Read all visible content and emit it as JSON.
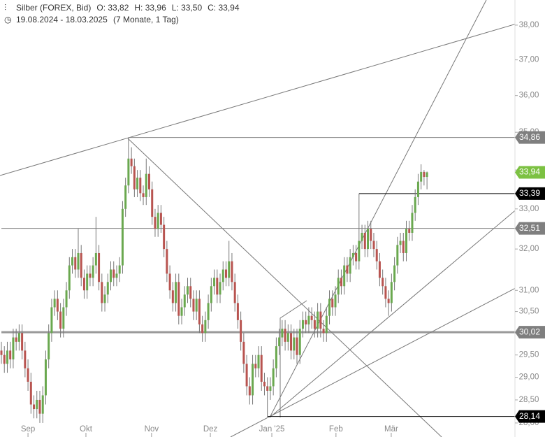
{
  "chart_data": {
    "type": "candlestick",
    "title": "Silber (FOREX, Bid)",
    "header_values": [
      "O: 33,82",
      "H: 33,96",
      "L: 33,50",
      "C: 33,94"
    ],
    "date_range": "19.08.2024 - 18.03.2025",
    "period": "(7 Monate, 1 Tag)",
    "log_scale": true,
    "ylim": [
      27.7,
      38.74
    ],
    "yticks": [
      {
        "value": 28,
        "label": "28,00"
      },
      {
        "value": 28.5,
        "label": "28,50"
      },
      {
        "value": 29,
        "label": "29,00"
      },
      {
        "value": 29.5,
        "label": "29,50"
      },
      {
        "value": 30,
        "label": "30,00"
      },
      {
        "value": 30.5,
        "label": "30,50"
      },
      {
        "value": 31,
        "label": "31,00"
      },
      {
        "value": 32,
        "label": "32,00"
      },
      {
        "value": 33,
        "label": "33,00"
      },
      {
        "value": 34,
        "label": "34,00"
      },
      {
        "value": 35,
        "label": "35,00"
      },
      {
        "value": 36,
        "label": "36,00"
      },
      {
        "value": 37,
        "label": "37,00"
      },
      {
        "value": 38,
        "label": "38,00"
      }
    ],
    "xticks": [
      {
        "value": 9,
        "label": "Sep"
      },
      {
        "value": 28.6,
        "label": "Okt"
      },
      {
        "value": 50.8,
        "label": "Nov"
      },
      {
        "value": 70.7,
        "label": "Dez"
      },
      {
        "value": 91.5,
        "label": "Jan '25"
      },
      {
        "value": 113.2,
        "label": "Feb"
      },
      {
        "value": 131.9,
        "label": "Mär"
      }
    ],
    "up_color": "#6aa84f",
    "down_color": "#b85450",
    "levels": [
      {
        "value": 34.86,
        "label": "34,86",
        "color": "#7f7f7f",
        "start": 43
      },
      {
        "value": 33.94,
        "label": "33,94",
        "color": "#7cc142",
        "start": null
      },
      {
        "value": 33.39,
        "label": "33,39",
        "color": "#000000",
        "start": 121
      },
      {
        "value": 32.51,
        "label": "32,51",
        "color": "#7f7f7f",
        "start": 0
      },
      {
        "value": 30.02,
        "label": "30,02",
        "color": "#7f7f7f",
        "start": 0
      },
      {
        "value": 28.14,
        "label": "28,14",
        "color": "#000000",
        "start": 90
      }
    ],
    "ohlc": [
      [
        29.6,
        29.8,
        29.3,
        29.5
      ],
      [
        29.5,
        29.7,
        29.1,
        29.3
      ],
      [
        29.3,
        29.8,
        29.1,
        29.6
      ],
      [
        29.6,
        29.8,
        29.2,
        29.4
      ],
      [
        29.4,
        30.1,
        29.2,
        29.9
      ],
      [
        29.9,
        30.1,
        29.6,
        29.8
      ],
      [
        29.8,
        30.2,
        29.6,
        30.0
      ],
      [
        30.0,
        30.2,
        29.4,
        29.6
      ],
      [
        29.6,
        29.8,
        29.0,
        29.2
      ],
      [
        29.2,
        29.4,
        28.7,
        28.9
      ],
      [
        28.9,
        29.1,
        28.2,
        28.4
      ],
      [
        28.4,
        28.6,
        28.1,
        28.3
      ],
      [
        28.3,
        28.7,
        28.1,
        28.5
      ],
      [
        28.5,
        28.7,
        28.0,
        28.2
      ],
      [
        28.2,
        28.8,
        28.0,
        28.6
      ],
      [
        28.6,
        29.6,
        28.4,
        29.4
      ],
      [
        29.4,
        30.2,
        29.2,
        30.0
      ],
      [
        30.0,
        30.8,
        29.8,
        30.6
      ],
      [
        30.6,
        31.0,
        30.4,
        30.8
      ],
      [
        30.8,
        31.0,
        30.3,
        30.5
      ],
      [
        30.5,
        30.7,
        29.9,
        30.1
      ],
      [
        30.1,
        30.8,
        29.9,
        30.6
      ],
      [
        30.6,
        31.2,
        30.4,
        31.0
      ],
      [
        31.0,
        31.8,
        30.8,
        31.6
      ],
      [
        31.6,
        32.0,
        31.4,
        31.8
      ],
      [
        31.8,
        32.0,
        31.3,
        31.5
      ],
      [
        31.5,
        32.5,
        31.3,
        31.9
      ],
      [
        31.9,
        32.1,
        31.1,
        31.3
      ],
      [
        31.3,
        31.5,
        30.8,
        31.0
      ],
      [
        31.0,
        31.6,
        30.8,
        31.4
      ],
      [
        31.4,
        31.6,
        31.1,
        31.3
      ],
      [
        31.3,
        31.8,
        31.1,
        31.6
      ],
      [
        31.6,
        32.8,
        31.4,
        31.9
      ],
      [
        31.9,
        32.1,
        31.0,
        31.2
      ],
      [
        31.2,
        31.4,
        30.5,
        30.7
      ],
      [
        30.7,
        31.1,
        30.5,
        30.9
      ],
      [
        30.9,
        31.4,
        30.7,
        31.2
      ],
      [
        31.2,
        31.7,
        31.0,
        31.5
      ],
      [
        31.5,
        31.7,
        31.1,
        31.3
      ],
      [
        31.3,
        31.6,
        31.1,
        31.4
      ],
      [
        31.4,
        31.8,
        31.2,
        31.6
      ],
      [
        31.6,
        33.2,
        31.4,
        33.0
      ],
      [
        33.0,
        33.8,
        32.8,
        33.6
      ],
      [
        33.6,
        34.86,
        33.4,
        34.3
      ],
      [
        34.3,
        34.6,
        33.9,
        34.1
      ],
      [
        34.1,
        34.3,
        33.3,
        33.5
      ],
      [
        33.5,
        34.0,
        33.3,
        33.8
      ],
      [
        33.8,
        34.0,
        33.2,
        33.4
      ],
      [
        33.4,
        33.6,
        33.1,
        33.3
      ],
      [
        33.3,
        34.3,
        33.1,
        33.9
      ],
      [
        33.9,
        34.1,
        33.3,
        33.5
      ],
      [
        33.5,
        33.7,
        32.6,
        32.8
      ],
      [
        32.8,
        33.0,
        32.3,
        32.5
      ],
      [
        32.5,
        33.1,
        32.3,
        32.9
      ],
      [
        32.9,
        33.1,
        32.4,
        32.6
      ],
      [
        32.6,
        32.8,
        31.8,
        32.0
      ],
      [
        32.0,
        32.2,
        31.2,
        31.4
      ],
      [
        31.4,
        31.6,
        30.8,
        31.0
      ],
      [
        31.0,
        31.2,
        30.5,
        30.7
      ],
      [
        30.7,
        31.4,
        30.5,
        31.2
      ],
      [
        31.2,
        31.4,
        30.2,
        30.4
      ],
      [
        30.4,
        30.8,
        30.2,
        30.6
      ],
      [
        30.6,
        31.1,
        30.4,
        30.9
      ],
      [
        30.9,
        31.3,
        30.7,
        31.1
      ],
      [
        31.1,
        31.3,
        30.6,
        30.8
      ],
      [
        30.8,
        31.0,
        30.3,
        30.5
      ],
      [
        30.5,
        31.0,
        30.3,
        30.8
      ],
      [
        30.8,
        31.0,
        30.0,
        30.2
      ],
      [
        30.2,
        30.4,
        29.8,
        30.0
      ],
      [
        30.0,
        30.5,
        29.8,
        30.3
      ],
      [
        30.3,
        30.9,
        30.1,
        30.7
      ],
      [
        30.7,
        31.3,
        30.5,
        31.1
      ],
      [
        31.1,
        31.5,
        30.9,
        31.3
      ],
      [
        31.3,
        31.5,
        30.7,
        30.9
      ],
      [
        30.9,
        31.4,
        30.7,
        31.2
      ],
      [
        31.2,
        31.7,
        31.0,
        31.5
      ],
      [
        31.5,
        31.7,
        31.1,
        31.3
      ],
      [
        31.3,
        32.2,
        31.1,
        31.7
      ],
      [
        31.7,
        31.9,
        31.0,
        31.2
      ],
      [
        31.2,
        31.4,
        30.5,
        30.7
      ],
      [
        30.7,
        30.9,
        30.1,
        30.3
      ],
      [
        30.3,
        30.5,
        29.6,
        29.8
      ],
      [
        29.8,
        30.0,
        29.1,
        29.3
      ],
      [
        29.3,
        29.5,
        28.6,
        28.8
      ],
      [
        28.8,
        29.0,
        28.4,
        28.6
      ],
      [
        28.6,
        29.5,
        28.4,
        29.3
      ],
      [
        29.3,
        29.5,
        29.0,
        29.2
      ],
      [
        29.2,
        29.7,
        29.0,
        29.5
      ],
      [
        29.5,
        29.7,
        28.7,
        28.9
      ],
      [
        28.9,
        29.1,
        28.6,
        28.8
      ],
      [
        28.8,
        29.0,
        28.14,
        28.7
      ],
      [
        28.7,
        29.0,
        28.5,
        28.8
      ],
      [
        28.8,
        29.4,
        28.6,
        29.2
      ],
      [
        29.2,
        29.9,
        29.0,
        29.7
      ],
      [
        29.7,
        30.1,
        29.5,
        29.9
      ],
      [
        29.9,
        30.3,
        29.7,
        30.1
      ],
      [
        30.1,
        30.3,
        29.6,
        29.8
      ],
      [
        29.8,
        30.2,
        29.6,
        30.0
      ],
      [
        30.0,
        30.2,
        29.4,
        29.6
      ],
      [
        29.6,
        30.1,
        29.4,
        29.9
      ],
      [
        29.9,
        30.1,
        29.3,
        29.5
      ],
      [
        29.5,
        30.3,
        29.3,
        30.1
      ],
      [
        30.1,
        30.5,
        29.9,
        30.3
      ],
      [
        30.3,
        30.5,
        30.0,
        30.2
      ],
      [
        30.2,
        30.6,
        30.0,
        30.4
      ],
      [
        30.4,
        30.6,
        30.1,
        30.3
      ],
      [
        30.3,
        30.5,
        29.9,
        30.1
      ],
      [
        30.1,
        30.7,
        29.9,
        30.5
      ],
      [
        30.5,
        30.7,
        29.9,
        30.1
      ],
      [
        30.1,
        30.3,
        29.8,
        30.0
      ],
      [
        30.0,
        30.6,
        29.8,
        30.4
      ],
      [
        30.4,
        31.0,
        30.2,
        30.8
      ],
      [
        30.8,
        31.0,
        30.4,
        30.6
      ],
      [
        30.6,
        31.1,
        30.4,
        30.9
      ],
      [
        30.9,
        31.5,
        30.7,
        31.3
      ],
      [
        31.3,
        31.5,
        30.9,
        31.1
      ],
      [
        31.1,
        31.8,
        30.9,
        31.6
      ],
      [
        31.6,
        31.8,
        31.2,
        31.4
      ],
      [
        31.4,
        32.0,
        31.2,
        31.8
      ],
      [
        31.8,
        32.1,
        31.6,
        31.9
      ],
      [
        31.9,
        32.1,
        31.5,
        31.7
      ],
      [
        31.7,
        33.39,
        31.5,
        32.2
      ],
      [
        32.2,
        32.6,
        32.0,
        32.4
      ],
      [
        32.4,
        32.6,
        31.8,
        32.0
      ],
      [
        32.0,
        32.7,
        31.8,
        32.5
      ],
      [
        32.5,
        32.7,
        32.0,
        32.2
      ],
      [
        32.2,
        32.4,
        31.8,
        32.0
      ],
      [
        32.0,
        32.2,
        31.5,
        31.7
      ],
      [
        31.7,
        31.9,
        31.1,
        31.3
      ],
      [
        31.3,
        31.5,
        30.9,
        31.1
      ],
      [
        31.1,
        31.3,
        30.6,
        30.8
      ],
      [
        30.8,
        31.0,
        30.4,
        30.7
      ],
      [
        30.7,
        31.4,
        30.5,
        31.2
      ],
      [
        31.2,
        31.8,
        31.0,
        31.6
      ],
      [
        31.6,
        32.3,
        31.4,
        32.1
      ],
      [
        32.1,
        32.4,
        31.9,
        32.2
      ],
      [
        32.2,
        32.4,
        31.7,
        31.9
      ],
      [
        31.9,
        32.7,
        31.7,
        32.5
      ],
      [
        32.5,
        32.7,
        32.2,
        32.4
      ],
      [
        32.4,
        33.1,
        32.2,
        32.9
      ],
      [
        32.9,
        33.5,
        32.7,
        33.3
      ],
      [
        33.3,
        33.9,
        33.1,
        33.7
      ],
      [
        33.7,
        34.15,
        33.5,
        33.95
      ],
      [
        33.95,
        34.0,
        33.6,
        33.82
      ],
      [
        33.82,
        33.96,
        33.5,
        33.94
      ]
    ]
  }
}
